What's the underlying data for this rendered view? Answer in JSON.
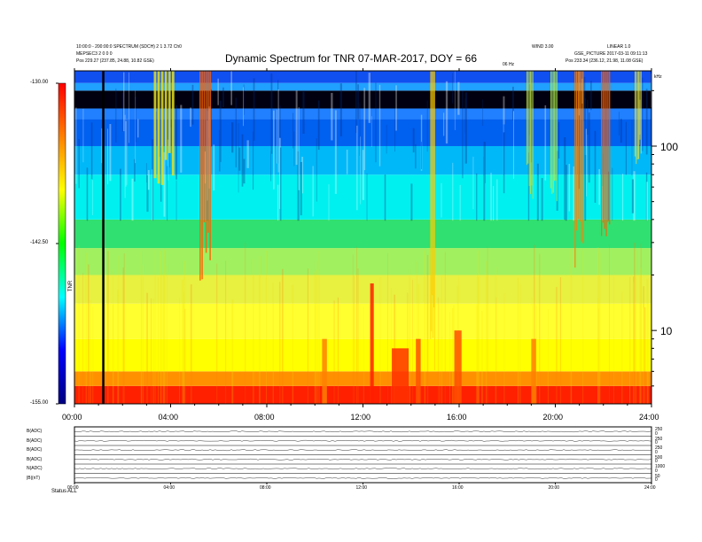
{
  "header": {
    "left_line1": "10:00:0 - 200:00:0 SPECTRUM (SDCH) 2 1 3.72 Ch0",
    "left_line2": "MEPSEC3  2 0 0 0",
    "left_line3": "Pos  229.27 (237.85, 24.88, 10.82 GSE)",
    "right_line1": "WIND 3.00",
    "right_line2": "LINEAR 1.0",
    "right_line3": "GSE_PICTURE 2017-03-11 09:11:13",
    "right_line4": "Pos  233.34 (236.12, 21.98, 11.08 GSE)",
    "mid_label": "06 Hz",
    "corner_label": "kHz"
  },
  "chart_data": {
    "type": "heatmap",
    "title": "Dynamic Spectrum for TNR 07-MAR-2017, DOY = 66",
    "x_ticks": [
      "00:00",
      "04:00",
      "08:00",
      "12:00",
      "16:00",
      "20:00",
      "24:00"
    ],
    "x_range_hours": [
      0,
      24
    ],
    "y_scale": "log",
    "y_ticks": [
      "100",
      "10"
    ],
    "y_range_khz": [
      4,
      256
    ],
    "colorbar": {
      "label": "TNR",
      "ticks": [
        "-130.00",
        "-142.50",
        "-155.00"
      ],
      "range": [
        -155,
        -130
      ],
      "colors": [
        "#000080",
        "#0000ff",
        "#00ffff",
        "#00ff00",
        "#ffff00",
        "#ff8000",
        "#ff0000"
      ]
    },
    "marker_hour": 1.2,
    "background_levels": [
      {
        "from_khz": 4,
        "to_khz": 5,
        "color": "#ff2000"
      },
      {
        "from_khz": 5,
        "to_khz": 6,
        "color": "#ff9000"
      },
      {
        "from_khz": 6,
        "to_khz": 9,
        "color": "#ffff00"
      },
      {
        "from_khz": 9,
        "to_khz": 14,
        "color": "#ffff30"
      },
      {
        "from_khz": 14,
        "to_khz": 20,
        "color": "#e8f040"
      },
      {
        "from_khz": 20,
        "to_khz": 28,
        "color": "#a0f060"
      },
      {
        "from_khz": 28,
        "to_khz": 40,
        "color": "#30e070"
      },
      {
        "from_khz": 40,
        "to_khz": 70,
        "color": "#00f0f0"
      },
      {
        "from_khz": 70,
        "to_khz": 100,
        "color": "#00b8f8"
      },
      {
        "from_khz": 100,
        "to_khz": 140,
        "color": "#0060f0"
      },
      {
        "from_khz": 140,
        "to_khz": 160,
        "color": "#2080ff"
      },
      {
        "from_khz": 160,
        "to_khz": 200,
        "color": "#000010"
      },
      {
        "from_khz": 200,
        "to_khz": 220,
        "color": "#20a0ff"
      },
      {
        "from_khz": 220,
        "to_khz": 256,
        "color": "#1050f0"
      }
    ],
    "bursts": [
      {
        "start_h": 3.3,
        "end_h": 4.2,
        "low_khz": 60,
        "color": "#e8e020"
      },
      {
        "start_h": 5.2,
        "end_h": 5.7,
        "low_khz": 18,
        "color": "#ff6000"
      },
      {
        "start_h": 14.8,
        "end_h": 15.0,
        "low_khz": 5,
        "color": "#ffcc00"
      },
      {
        "start_h": 18.8,
        "end_h": 19.1,
        "low_khz": 50,
        "color": "#c0e040"
      },
      {
        "start_h": 19.8,
        "end_h": 20.1,
        "low_khz": 40,
        "color": "#b0f050"
      },
      {
        "start_h": 20.8,
        "end_h": 21.2,
        "low_khz": 20,
        "color": "#ff8000"
      },
      {
        "start_h": 21.9,
        "end_h": 22.3,
        "low_khz": 22,
        "color": "#ff6000"
      },
      {
        "start_h": 23.3,
        "end_h": 23.6,
        "low_khz": 80,
        "color": "#e0e040"
      }
    ],
    "low_freq_enhancements": [
      {
        "start_h": 12.3,
        "end_h": 12.45,
        "top_khz": 18,
        "color": "#ff2000"
      },
      {
        "start_h": 13.2,
        "end_h": 13.9,
        "top_khz": 8,
        "color": "#ff3000"
      },
      {
        "start_h": 14.2,
        "end_h": 14.4,
        "top_khz": 9,
        "color": "#ff5000"
      },
      {
        "start_h": 15.8,
        "end_h": 16.1,
        "top_khz": 10,
        "color": "#ff5000"
      },
      {
        "start_h": 19.0,
        "end_h": 19.2,
        "top_khz": 9,
        "color": "#ff8000"
      },
      {
        "start_h": 10.3,
        "end_h": 10.5,
        "top_khz": 9,
        "color": "#ff8000"
      }
    ]
  },
  "bottom_panels": {
    "row_labels": [
      "B(ADC)",
      "B(ADC)",
      "B(ADC)",
      "B(ADC)",
      "N(ADC)",
      "|B|(nT)"
    ],
    "right_values": [
      [
        "250",
        "0"
      ],
      [
        "250",
        "0"
      ],
      [
        "250",
        "0"
      ],
      [
        "500",
        "0"
      ],
      [
        "1000",
        "0"
      ],
      [
        "50",
        "0"
      ]
    ],
    "x_ticks": [
      "00:00",
      "04:00",
      "08:00",
      "12:00",
      "16:00",
      "20:00",
      "24:00"
    ],
    "footer_label": "Status",
    "footer_value": "ALL"
  }
}
